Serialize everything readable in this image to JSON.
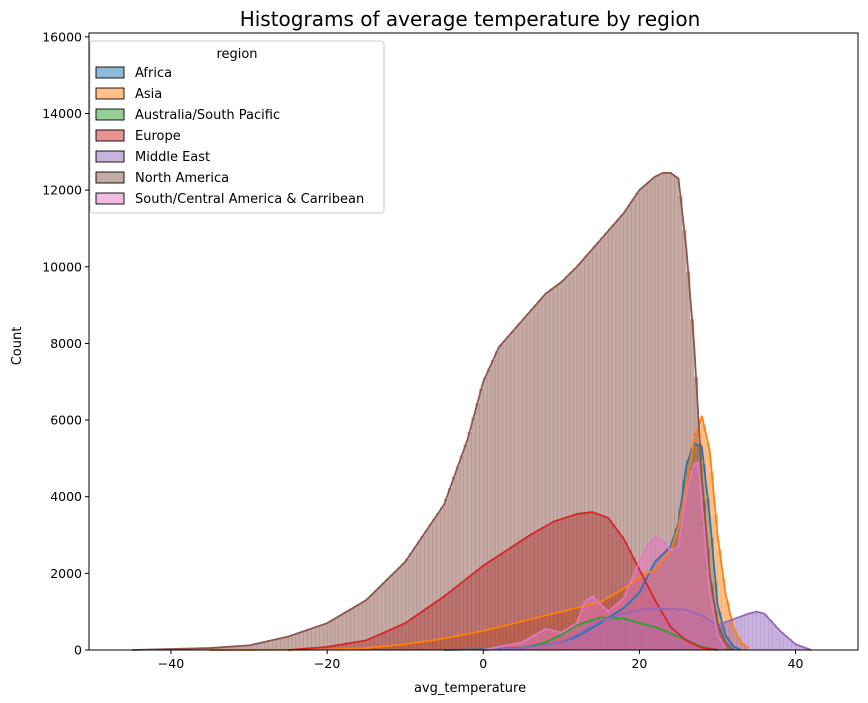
{
  "chart_data": {
    "type": "histogram",
    "title": "Histograms of average temperature by region",
    "xlabel": "avg_temperature",
    "ylabel": "Count",
    "xlim": [
      -50.5,
      48
    ],
    "ylim": [
      0,
      16100
    ],
    "xticks": [
      -40,
      -20,
      0,
      20,
      40
    ],
    "yticks": [
      0,
      2000,
      4000,
      6000,
      8000,
      10000,
      12000,
      14000,
      16000
    ],
    "grid": false,
    "legend": {
      "title": "region",
      "placement": "top-left"
    },
    "kde": true,
    "series": [
      {
        "name": "Africa",
        "color": "#1f77b4",
        "x": [
          -5,
          0,
          5,
          10,
          12,
          15,
          18,
          20,
          22,
          24,
          25,
          26,
          27,
          28,
          29,
          30,
          31,
          32,
          33
        ],
        "y": [
          0,
          20,
          60,
          200,
          350,
          700,
          1100,
          1500,
          2300,
          2700,
          3300,
          4800,
          5400,
          5300,
          3500,
          1200,
          400,
          100,
          0
        ]
      },
      {
        "name": "Asia",
        "color": "#ff7f0e",
        "x": [
          -35,
          -20,
          -15,
          -10,
          -5,
          0,
          5,
          10,
          15,
          18,
          20,
          22,
          24,
          25,
          26,
          27,
          28,
          29,
          30,
          31,
          32,
          33,
          34
        ],
        "y": [
          0,
          10,
          50,
          150,
          300,
          500,
          750,
          1000,
          1250,
          1600,
          1900,
          2100,
          2600,
          3200,
          4300,
          5500,
          6100,
          5200,
          3000,
          1500,
          600,
          200,
          50
        ]
      },
      {
        "name": "Australia/South Pacific",
        "color": "#2ca02c",
        "x": [
          0,
          5,
          8,
          10,
          12,
          15,
          18,
          20,
          22,
          25,
          28,
          30
        ],
        "y": [
          0,
          50,
          200,
          400,
          650,
          850,
          820,
          700,
          600,
          350,
          80,
          0
        ]
      },
      {
        "name": "Europe",
        "color": "#d62728",
        "x": [
          -25,
          -20,
          -15,
          -10,
          -5,
          0,
          3,
          6,
          9,
          12,
          14,
          16,
          18,
          20,
          22,
          24,
          26,
          28,
          30
        ],
        "y": [
          0,
          80,
          250,
          700,
          1400,
          2200,
          2600,
          3000,
          3350,
          3550,
          3600,
          3450,
          2900,
          2100,
          1300,
          600,
          250,
          60,
          0
        ]
      },
      {
        "name": "Middle East",
        "color": "#9467bd",
        "x": [
          0,
          5,
          10,
          12,
          15,
          18,
          20,
          22,
          24,
          26,
          28,
          30,
          32,
          34,
          35,
          36,
          38,
          40,
          42
        ],
        "y": [
          0,
          50,
          200,
          400,
          750,
          950,
          1050,
          1080,
          1070,
          1050,
          900,
          650,
          800,
          950,
          1000,
          950,
          500,
          150,
          0
        ]
      },
      {
        "name": "North America",
        "color": "#8c564b",
        "x": [
          -45,
          -35,
          -30,
          -25,
          -20,
          -15,
          -10,
          -5,
          -2,
          0,
          2,
          5,
          8,
          10,
          12,
          15,
          18,
          20,
          22,
          23,
          24,
          25,
          26,
          27,
          28,
          29,
          30,
          31,
          32
        ],
        "y": [
          0,
          50,
          120,
          350,
          700,
          1300,
          2300,
          3800,
          5500,
          7000,
          7900,
          8600,
          9300,
          9600,
          10000,
          10700,
          11400,
          12000,
          12350,
          12450,
          12450,
          12300,
          10500,
          8000,
          4500,
          2000,
          700,
          200,
          0
        ]
      },
      {
        "name": "South/Central America & Carribean",
        "color": "#e377c2",
        "x": [
          0,
          5,
          8,
          10,
          12,
          13,
          14,
          15,
          16,
          18,
          20,
          21,
          22,
          23,
          24,
          25,
          26,
          27,
          27.5,
          28,
          29,
          30,
          31
        ],
        "y": [
          0,
          200,
          550,
          450,
          700,
          1250,
          1400,
          1200,
          1000,
          1350,
          2300,
          2700,
          2950,
          2850,
          2600,
          2700,
          4100,
          4850,
          4900,
          3800,
          1500,
          400,
          50
        ]
      }
    ]
  }
}
